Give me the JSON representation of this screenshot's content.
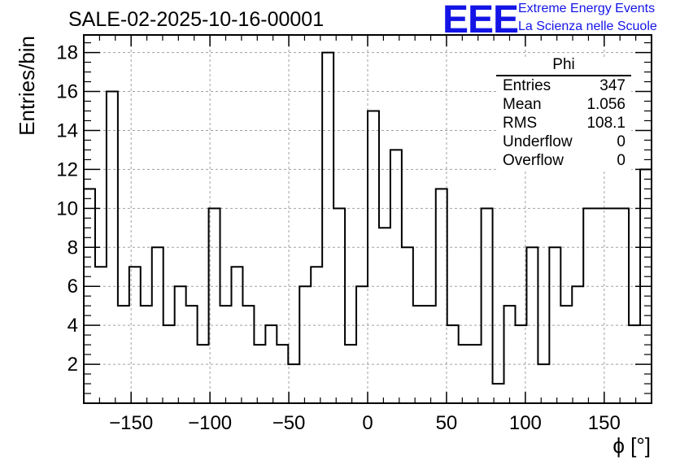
{
  "header": {
    "title": "SALE-02-2025-10-16-00001",
    "logo": "EEE",
    "logo_line1": "Extreme Energy Events",
    "logo_line2": "La Scienza nelle Scuole"
  },
  "colors": {
    "logo": "#1414e6",
    "line": "#000000",
    "grid": "#a0a0a0"
  },
  "stats_box": {
    "title": "Phi",
    "rows": [
      {
        "key": "Entries",
        "value": "347"
      },
      {
        "key": "Mean",
        "value": "1.056"
      },
      {
        "key": "RMS",
        "value": "108.1"
      },
      {
        "key": "Underflow",
        "value": "0"
      },
      {
        "key": "Overflow",
        "value": "0"
      }
    ]
  },
  "chart_data": {
    "type": "histogram",
    "title": "SALE-02-2025-10-16-00001",
    "xlabel": "ϕ [°]",
    "ylabel": "Entries/bin",
    "xlim": [
      -180,
      180
    ],
    "ylim": [
      0,
      18.9
    ],
    "bin_width": 7.2,
    "values": [
      11,
      7,
      16,
      5,
      7,
      5,
      8,
      4,
      6,
      5,
      3,
      10,
      5,
      7,
      5,
      3,
      4,
      3,
      2,
      6,
      7,
      18,
      10,
      3,
      6,
      15,
      9,
      13,
      8,
      5,
      5,
      11,
      4,
      3,
      3,
      10,
      1,
      5,
      4,
      8,
      2,
      8,
      5,
      6,
      10,
      10,
      10,
      10,
      4,
      12
    ],
    "x_ticks": [
      -150,
      -100,
      -50,
      0,
      50,
      100,
      150
    ],
    "x_tick_labels": [
      "−150",
      "−100",
      "−50",
      "0",
      "50",
      "100",
      "150"
    ],
    "y_ticks": [
      2,
      4,
      6,
      8,
      10,
      12,
      14,
      16,
      18
    ],
    "y_tick_labels": [
      "2",
      "4",
      "6",
      "8",
      "10",
      "12",
      "14",
      "16",
      "18"
    ],
    "grid": true
  }
}
